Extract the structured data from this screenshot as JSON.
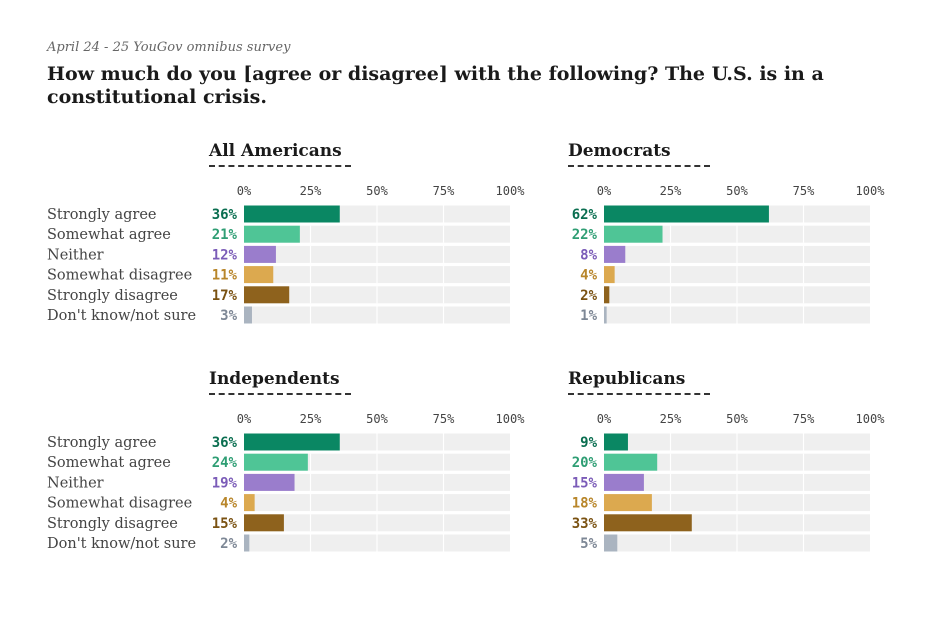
{
  "header": {
    "subtitle": "April 24 - 25 YouGov omnibus survey",
    "title": "How much do you [agree or disagree] with the following? The U.S. is in a constitutional crisis."
  },
  "colors": {
    "Strongly agree": "#0a8763",
    "Somewhat agree": "#4fc596",
    "Neither": "#9a7dcc",
    "Somewhat disagree": "#dca94f",
    "Strongly disagree": "#8e621d",
    "Don't know/not sure": "#aab4c0",
    "track": "#efefef"
  },
  "label_colors": {
    "Strongly agree": "#0a6e50",
    "Somewhat agree": "#2f9e74",
    "Neither": "#7b5cb8",
    "Somewhat disagree": "#b8862a",
    "Strongly disagree": "#7a5212",
    "Don't know/not sure": "#7d8795"
  },
  "chart_data": [
    {
      "type": "bar",
      "title": "All Americans",
      "categories": [
        "Strongly agree",
        "Somewhat agree",
        "Neither",
        "Somewhat disagree",
        "Strongly disagree",
        "Don't know/not sure"
      ],
      "values": [
        36,
        21,
        12,
        11,
        17,
        3
      ],
      "value_labels": [
        "36%",
        "21%",
        "12%",
        "11%",
        "17%",
        "3%"
      ],
      "xticks": [
        "0%",
        "25%",
        "50%",
        "75%",
        "100%"
      ],
      "xlim": [
        0,
        100
      ]
    },
    {
      "type": "bar",
      "title": "Democrats",
      "categories": [
        "Strongly agree",
        "Somewhat agree",
        "Neither",
        "Somewhat disagree",
        "Strongly disagree",
        "Don't know/not sure"
      ],
      "values": [
        62,
        22,
        8,
        4,
        2,
        1
      ],
      "value_labels": [
        "62%",
        "22%",
        "8%",
        "4%",
        "2%",
        "1%"
      ],
      "xticks": [
        "0%",
        "25%",
        "50%",
        "75%",
        "100%"
      ],
      "xlim": [
        0,
        100
      ]
    },
    {
      "type": "bar",
      "title": "Independents",
      "categories": [
        "Strongly agree",
        "Somewhat agree",
        "Neither",
        "Somewhat disagree",
        "Strongly disagree",
        "Don't know/not sure"
      ],
      "values": [
        36,
        24,
        19,
        4,
        15,
        2
      ],
      "value_labels": [
        "36%",
        "24%",
        "19%",
        "4%",
        "15%",
        "2%"
      ],
      "xticks": [
        "0%",
        "25%",
        "50%",
        "75%",
        "100%"
      ],
      "xlim": [
        0,
        100
      ]
    },
    {
      "type": "bar",
      "title": "Republicans",
      "categories": [
        "Strongly agree",
        "Somewhat agree",
        "Neither",
        "Somewhat disagree",
        "Strongly disagree",
        "Don't know/not sure"
      ],
      "values": [
        9,
        20,
        15,
        18,
        33,
        5
      ],
      "value_labels": [
        "9%",
        "20%",
        "15%",
        "18%",
        "33%",
        "5%"
      ],
      "xticks": [
        "0%",
        "25%",
        "50%",
        "75%",
        "100%"
      ],
      "xlim": [
        0,
        100
      ]
    }
  ]
}
